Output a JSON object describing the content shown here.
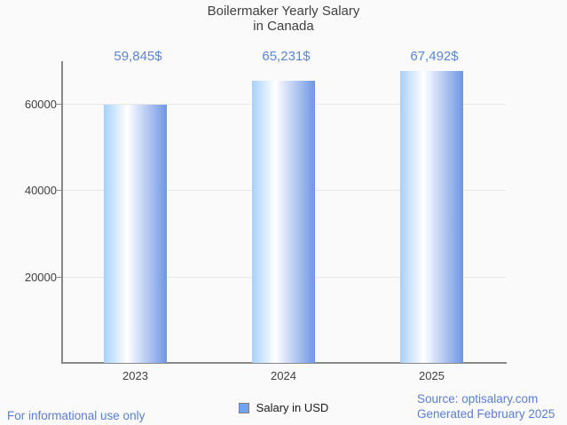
{
  "chart_data": {
    "type": "bar",
    "title": "Boilermaker Yearly Salary in Canada",
    "title_line1": "Boilermaker Yearly Salary",
    "title_line2": "in Canada",
    "categories": [
      "2023",
      "2024",
      "2025"
    ],
    "series": [
      {
        "name": "Salary in USD",
        "values": [
          59845,
          65231,
          67492
        ]
      }
    ],
    "value_labels": [
      "59,845$",
      "65,231$",
      "67,492$"
    ],
    "xlabel": "",
    "ylabel": "",
    "ylim": [
      0,
      70000
    ],
    "yticks": [
      20000,
      40000,
      60000
    ],
    "ytick_labels": [
      "20000",
      "40000",
      "60000"
    ],
    "grid": true,
    "legend_position": "bottom"
  },
  "legend": {
    "label": "Salary in USD"
  },
  "footer": {
    "left": "For informational use only",
    "source_line1": "Source: optisalary.com",
    "source_line2": "Generated February 2025"
  },
  "colors": {
    "background": "#fafafa",
    "title_text": "#404040",
    "axis_line": "#888888",
    "gridline": "#e7e7e7",
    "axis_text": "#404040",
    "value_label_blue": "#5b86d6",
    "footer_blue": "#5c7dd6",
    "bar_gradient_left": "#a7d1fa",
    "bar_gradient_mid": "#ffffff",
    "bar_gradient_right": "#6e96e5",
    "legend_swatch_fill": "#6fa3ef",
    "legend_swatch_border": "#808080"
  }
}
